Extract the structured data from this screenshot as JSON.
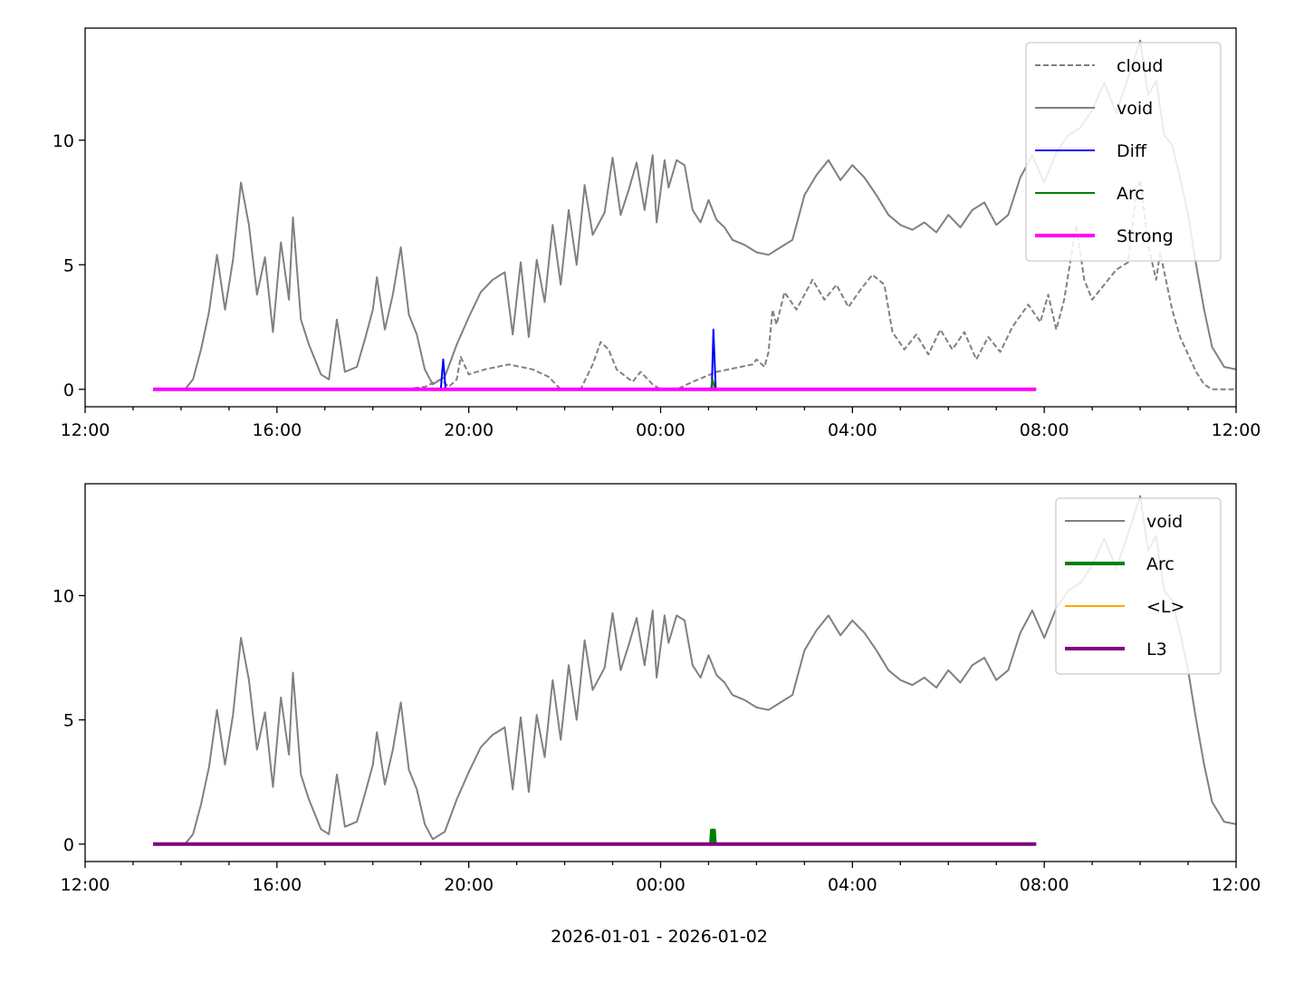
{
  "xlabel": "2026-01-01 - 2026-01-02",
  "chart_data": [
    {
      "type": "line",
      "title": "",
      "ylabel": "",
      "xlim": [
        "2026-01-01 12:00",
        "2026-01-02 12:00"
      ],
      "ylim": [
        -0.7,
        14.5
      ],
      "x_ticks": [
        "12:00",
        "16:00",
        "20:00",
        "00:00",
        "04:00",
        "08:00",
        "12:00"
      ],
      "y_ticks": [
        "0",
        "5",
        "10"
      ],
      "legend_position": "top-right",
      "series": [
        {
          "name": "cloud",
          "color": "#808080",
          "style": "dashed",
          "points": [
            [
              "2026-01-01 13:25",
              0
            ],
            [
              "2026-01-01 18:40",
              0
            ],
            [
              "2026-01-01 19:05",
              0.1
            ],
            [
              "2026-01-01 19:25",
              0.4
            ],
            [
              "2026-01-01 19:35",
              0.1
            ],
            [
              "2026-01-01 19:45",
              0.4
            ],
            [
              "2026-01-01 19:50",
              1.3
            ],
            [
              "2026-01-01 20:00",
              0.6
            ],
            [
              "2026-01-01 20:20",
              0.8
            ],
            [
              "2026-01-01 20:50",
              1.0
            ],
            [
              "2026-01-01 21:20",
              0.8
            ],
            [
              "2026-01-01 21:40",
              0.5
            ],
            [
              "2026-01-01 21:55",
              0.0
            ],
            [
              "2026-01-01 22:20",
              0.0
            ],
            [
              "2026-01-01 22:35",
              1.0
            ],
            [
              "2026-01-01 22:45",
              1.9
            ],
            [
              "2026-01-01 22:55",
              1.6
            ],
            [
              "2026-01-01 23:05",
              0.8
            ],
            [
              "2026-01-01 23:25",
              0.3
            ],
            [
              "2026-01-01 23:35",
              0.7
            ],
            [
              "2026-01-01 23:50",
              0.2
            ],
            [
              "2026-01-02 00:00",
              0.0
            ],
            [
              "2026-01-02 00:20",
              0.0
            ],
            [
              "2026-01-02 00:40",
              0.3
            ],
            [
              "2026-01-02 01:10",
              0.7
            ],
            [
              "2026-01-02 01:40",
              0.9
            ],
            [
              "2026-01-02 01:55",
              1.0
            ],
            [
              "2026-01-02 02:00",
              1.2
            ],
            [
              "2026-01-02 02:10",
              0.9
            ],
            [
              "2026-01-02 02:15",
              1.5
            ],
            [
              "2026-01-02 02:20",
              3.2
            ],
            [
              "2026-01-02 02:25",
              2.6
            ],
            [
              "2026-01-02 02:35",
              3.9
            ],
            [
              "2026-01-02 02:50",
              3.2
            ],
            [
              "2026-01-02 03:10",
              4.4
            ],
            [
              "2026-01-02 03:25",
              3.6
            ],
            [
              "2026-01-02 03:40",
              4.2
            ],
            [
              "2026-01-02 03:55",
              3.3
            ],
            [
              "2026-01-02 04:10",
              4.0
            ],
            [
              "2026-01-02 04:25",
              4.6
            ],
            [
              "2026-01-02 04:40",
              4.2
            ],
            [
              "2026-01-02 04:50",
              2.3
            ],
            [
              "2026-01-02 05:05",
              1.6
            ],
            [
              "2026-01-02 05:20",
              2.2
            ],
            [
              "2026-01-02 05:35",
              1.4
            ],
            [
              "2026-01-02 05:50",
              2.4
            ],
            [
              "2026-01-02 06:05",
              1.6
            ],
            [
              "2026-01-02 06:20",
              2.3
            ],
            [
              "2026-01-02 06:35",
              1.2
            ],
            [
              "2026-01-02 06:50",
              2.1
            ],
            [
              "2026-01-02 07:05",
              1.5
            ],
            [
              "2026-01-02 07:20",
              2.5
            ],
            [
              "2026-01-02 07:40",
              3.4
            ],
            [
              "2026-01-02 07:55",
              2.7
            ],
            [
              "2026-01-02 08:05",
              3.8
            ],
            [
              "2026-01-02 08:15",
              2.4
            ],
            [
              "2026-01-02 08:25",
              3.6
            ],
            [
              "2026-01-02 08:40",
              6.6
            ],
            [
              "2026-01-02 08:50",
              4.4
            ],
            [
              "2026-01-02 09:00",
              3.6
            ],
            [
              "2026-01-02 09:15",
              4.2
            ],
            [
              "2026-01-02 09:30",
              4.8
            ],
            [
              "2026-01-02 09:45",
              5.1
            ],
            [
              "2026-01-02 09:55",
              7.9
            ],
            [
              "2026-01-02 10:00",
              8.4
            ],
            [
              "2026-01-02 10:10",
              5.8
            ],
            [
              "2026-01-02 10:20",
              4.4
            ],
            [
              "2026-01-02 10:25",
              5.5
            ],
            [
              "2026-01-02 10:40",
              3.2
            ],
            [
              "2026-01-02 10:50",
              2.1
            ],
            [
              "2026-01-02 11:00",
              1.4
            ],
            [
              "2026-01-02 11:10",
              0.7
            ],
            [
              "2026-01-02 11:20",
              0.2
            ],
            [
              "2026-01-02 11:30",
              0.0
            ],
            [
              "2026-01-02 11:45",
              0.0
            ],
            [
              "2026-01-02 12:00",
              0.0
            ]
          ]
        },
        {
          "name": "void",
          "color": "#808080",
          "style": "solid",
          "points": [
            [
              "2026-01-01 13:25",
              0
            ],
            [
              "2026-01-01 14:05",
              0.0
            ],
            [
              "2026-01-01 14:15",
              0.4
            ],
            [
              "2026-01-01 14:25",
              1.6
            ],
            [
              "2026-01-01 14:35",
              3.1
            ],
            [
              "2026-01-01 14:45",
              5.4
            ],
            [
              "2026-01-01 14:55",
              3.2
            ],
            [
              "2026-01-01 15:05",
              5.2
            ],
            [
              "2026-01-01 15:15",
              8.3
            ],
            [
              "2026-01-01 15:25",
              6.6
            ],
            [
              "2026-01-01 15:35",
              3.8
            ],
            [
              "2026-01-01 15:45",
              5.3
            ],
            [
              "2026-01-01 15:55",
              2.3
            ],
            [
              "2026-01-01 16:05",
              5.9
            ],
            [
              "2026-01-01 16:15",
              3.6
            ],
            [
              "2026-01-01 16:20",
              6.9
            ],
            [
              "2026-01-01 16:30",
              2.8
            ],
            [
              "2026-01-01 16:40",
              1.8
            ],
            [
              "2026-01-01 16:55",
              0.6
            ],
            [
              "2026-01-01 17:05",
              0.4
            ],
            [
              "2026-01-01 17:15",
              2.8
            ],
            [
              "2026-01-01 17:25",
              0.7
            ],
            [
              "2026-01-01 17:40",
              0.9
            ],
            [
              "2026-01-01 17:50",
              2.0
            ],
            [
              "2026-01-01 18:00",
              3.2
            ],
            [
              "2026-01-01 18:05",
              4.5
            ],
            [
              "2026-01-01 18:15",
              2.4
            ],
            [
              "2026-01-01 18:25",
              3.8
            ],
            [
              "2026-01-01 18:35",
              5.7
            ],
            [
              "2026-01-01 18:45",
              3.0
            ],
            [
              "2026-01-01 18:55",
              2.2
            ],
            [
              "2026-01-01 19:05",
              0.8
            ],
            [
              "2026-01-01 19:15",
              0.2
            ],
            [
              "2026-01-01 19:30",
              0.5
            ],
            [
              "2026-01-01 19:45",
              1.8
            ],
            [
              "2026-01-01 20:00",
              2.9
            ],
            [
              "2026-01-01 20:15",
              3.9
            ],
            [
              "2026-01-01 20:30",
              4.4
            ],
            [
              "2026-01-01 20:45",
              4.7
            ],
            [
              "2026-01-01 20:55",
              2.2
            ],
            [
              "2026-01-01 21:05",
              5.1
            ],
            [
              "2026-01-01 21:15",
              2.1
            ],
            [
              "2026-01-01 21:25",
              5.2
            ],
            [
              "2026-01-01 21:35",
              3.5
            ],
            [
              "2026-01-01 21:45",
              6.6
            ],
            [
              "2026-01-01 21:55",
              4.2
            ],
            [
              "2026-01-01 22:05",
              7.2
            ],
            [
              "2026-01-01 22:15",
              5.0
            ],
            [
              "2026-01-01 22:25",
              8.2
            ],
            [
              "2026-01-01 22:35",
              6.2
            ],
            [
              "2026-01-01 22:50",
              7.1
            ],
            [
              "2026-01-01 23:00",
              9.3
            ],
            [
              "2026-01-01 23:10",
              7.0
            ],
            [
              "2026-01-01 23:20",
              8.0
            ],
            [
              "2026-01-01 23:30",
              9.1
            ],
            [
              "2026-01-01 23:40",
              7.2
            ],
            [
              "2026-01-01 23:50",
              9.4
            ],
            [
              "2026-01-01 23:55",
              6.7
            ],
            [
              "2026-01-02 00:05",
              9.2
            ],
            [
              "2026-01-02 00:10",
              8.1
            ],
            [
              "2026-01-02 00:20",
              9.2
            ],
            [
              "2026-01-02 00:30",
              9.0
            ],
            [
              "2026-01-02 00:40",
              7.2
            ],
            [
              "2026-01-02 00:50",
              6.7
            ],
            [
              "2026-01-02 01:00",
              7.6
            ],
            [
              "2026-01-02 01:10",
              6.8
            ],
            [
              "2026-01-02 01:20",
              6.5
            ],
            [
              "2026-01-02 01:30",
              6.0
            ],
            [
              "2026-01-02 01:45",
              5.8
            ],
            [
              "2026-01-02 02:00",
              5.5
            ],
            [
              "2026-01-02 02:15",
              5.4
            ],
            [
              "2026-01-02 02:30",
              5.7
            ],
            [
              "2026-01-02 02:45",
              6.0
            ],
            [
              "2026-01-02 03:00",
              7.8
            ],
            [
              "2026-01-02 03:15",
              8.6
            ],
            [
              "2026-01-02 03:30",
              9.2
            ],
            [
              "2026-01-02 03:45",
              8.4
            ],
            [
              "2026-01-02 04:00",
              9.0
            ],
            [
              "2026-01-02 04:15",
              8.5
            ],
            [
              "2026-01-02 04:30",
              7.8
            ],
            [
              "2026-01-02 04:45",
              7.0
            ],
            [
              "2026-01-02 05:00",
              6.6
            ],
            [
              "2026-01-02 05:15",
              6.4
            ],
            [
              "2026-01-02 05:30",
              6.7
            ],
            [
              "2026-01-02 05:45",
              6.3
            ],
            [
              "2026-01-02 06:00",
              7.0
            ],
            [
              "2026-01-02 06:15",
              6.5
            ],
            [
              "2026-01-02 06:30",
              7.2
            ],
            [
              "2026-01-02 06:45",
              7.5
            ],
            [
              "2026-01-02 07:00",
              6.6
            ],
            [
              "2026-01-02 07:15",
              7.0
            ],
            [
              "2026-01-02 07:30",
              8.5
            ],
            [
              "2026-01-02 07:45",
              9.4
            ],
            [
              "2026-01-02 08:00",
              8.3
            ],
            [
              "2026-01-02 08:15",
              9.5
            ],
            [
              "2026-01-02 08:30",
              10.2
            ],
            [
              "2026-01-02 08:45",
              10.5
            ],
            [
              "2026-01-02 09:00",
              11.2
            ],
            [
              "2026-01-02 09:15",
              12.3
            ],
            [
              "2026-01-02 09:30",
              11.1
            ],
            [
              "2026-01-02 09:45",
              12.5
            ],
            [
              "2026-01-02 10:00",
              14.0
            ],
            [
              "2026-01-02 10:10",
              11.8
            ],
            [
              "2026-01-02 10:20",
              12.4
            ],
            [
              "2026-01-02 10:30",
              10.2
            ],
            [
              "2026-01-02 10:40",
              9.8
            ],
            [
              "2026-01-02 10:50",
              8.5
            ],
            [
              "2026-01-02 11:00",
              7.0
            ],
            [
              "2026-01-02 11:10",
              5.0
            ],
            [
              "2026-01-02 11:20",
              3.2
            ],
            [
              "2026-01-02 11:30",
              1.7
            ],
            [
              "2026-01-02 11:45",
              0.9
            ],
            [
              "2026-01-02 12:00",
              0.8
            ]
          ]
        },
        {
          "name": "Diff",
          "color": "#0000ff",
          "style": "solid",
          "points": [
            [
              "2026-01-01 19:25",
              0
            ],
            [
              "2026-01-01 19:28",
              1.2
            ],
            [
              "2026-01-01 19:31",
              0
            ],
            [
              "2026-01-02 01:04",
              0
            ],
            [
              "2026-01-02 01:06",
              2.4
            ],
            [
              "2026-01-02 01:09",
              0
            ]
          ]
        },
        {
          "name": "Arc",
          "color": "#008000",
          "style": "solid",
          "points": [
            [
              "2026-01-02 01:03",
              0
            ],
            [
              "2026-01-02 01:05",
              0.4
            ],
            [
              "2026-01-02 01:08",
              0
            ]
          ]
        },
        {
          "name": "Strong",
          "color": "#ff00ff",
          "style": "solid-thick",
          "points": [
            [
              "2026-01-01 13:25",
              0
            ],
            [
              "2026-01-02 07:50",
              0
            ]
          ]
        }
      ]
    },
    {
      "type": "line",
      "title": "",
      "ylabel": "",
      "xlabel": "2026-01-01 - 2026-01-02",
      "xlim": [
        "2026-01-01 12:00",
        "2026-01-02 12:00"
      ],
      "ylim": [
        -0.7,
        14.5
      ],
      "x_ticks": [
        "12:00",
        "16:00",
        "20:00",
        "00:00",
        "04:00",
        "08:00",
        "12:00"
      ],
      "y_ticks": [
        "0",
        "5",
        "10"
      ],
      "legend_position": "top-right",
      "series": [
        {
          "name": "void",
          "color": "#808080",
          "style": "solid",
          "same_as": "void"
        },
        {
          "name": "Arc",
          "color": "#008000",
          "style": "solid-thick",
          "points": [
            [
              "2026-01-02 01:03",
              0
            ],
            [
              "2026-01-02 01:04",
              0.55
            ],
            [
              "2026-01-02 01:07",
              0.55
            ],
            [
              "2026-01-02 01:08",
              0
            ]
          ]
        },
        {
          "name": "<L>",
          "color": "#ffa500",
          "style": "solid",
          "points": [
            [
              "2026-01-01 13:25",
              0
            ],
            [
              "2026-01-02 07:50",
              0
            ]
          ]
        },
        {
          "name": "L3",
          "color": "#800080",
          "style": "solid-thick",
          "points": [
            [
              "2026-01-01 13:25",
              0
            ],
            [
              "2026-01-02 07:50",
              0
            ]
          ]
        }
      ]
    }
  ]
}
